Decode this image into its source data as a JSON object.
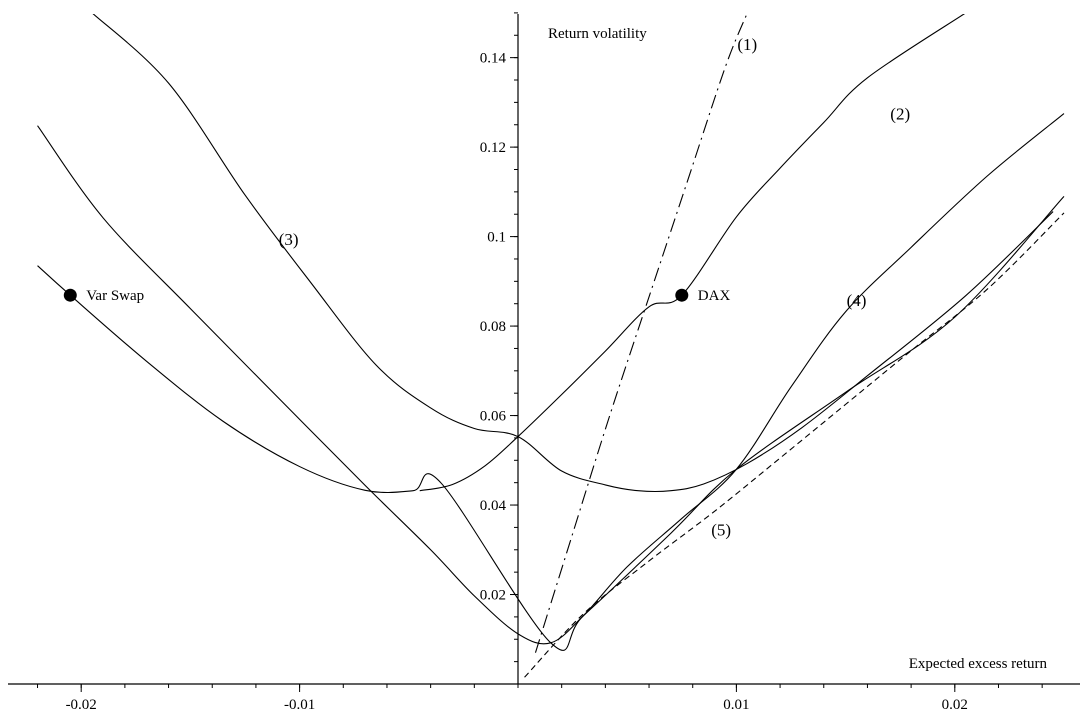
{
  "chart_data": {
    "type": "line",
    "title": "",
    "xlabel": "Expected excess return",
    "ylabel": "Return volatility",
    "xlim": [
      -0.022,
      0.025
    ],
    "ylim": [
      0,
      0.15
    ],
    "x_ticks": [
      -0.02,
      -0.01,
      0.01,
      0.02
    ],
    "x_tick_labels": [
      "-0.02",
      "-0.01",
      "0.01",
      "0.02"
    ],
    "y_ticks": [
      0.02,
      0.04,
      0.06,
      0.08,
      0.1,
      0.12,
      0.14
    ],
    "y_tick_labels": [
      "0.02",
      "0.04",
      "0.06",
      "0.08",
      "0.1",
      "0.12",
      "0.14"
    ],
    "grid": false,
    "legend": "none",
    "series": [
      {
        "label": "(1)",
        "style": "dash-dot",
        "label_at": [
          0.0105,
          0.143
        ],
        "points": [
          [
            0.0008,
            0.007
          ],
          [
            0.0024,
            0.032
          ],
          [
            0.0042,
            0.06
          ],
          [
            0.0061,
            0.088
          ],
          [
            0.0078,
            0.113
          ],
          [
            0.0095,
            0.138
          ],
          [
            0.0105,
            0.15
          ]
        ]
      },
      {
        "label": "(2)",
        "style": "solid",
        "label_at": [
          0.0175,
          0.1275
        ],
        "points": [
          [
            -0.0045,
            0.0432
          ],
          [
            -0.003,
            0.0446
          ],
          [
            -0.0015,
            0.0488
          ],
          [
            0,
            0.0553
          ],
          [
            0.002,
            0.0647
          ],
          [
            0.004,
            0.0744
          ],
          [
            0.006,
            0.0843
          ],
          [
            0.0075,
            0.0869
          ],
          [
            0.01,
            0.1044
          ],
          [
            0.012,
            0.1153
          ],
          [
            0.014,
            0.1255
          ],
          [
            0.016,
            0.1355
          ],
          [
            0.0205,
            0.15
          ]
        ]
      },
      {
        "label": "(3)",
        "style": "solid",
        "label_at": [
          -0.0105,
          0.0995
        ],
        "points": [
          [
            -0.0195,
            0.15
          ],
          [
            -0.016,
            0.1343
          ],
          [
            -0.0125,
            0.1093
          ],
          [
            -0.0095,
            0.0898
          ],
          [
            -0.0065,
            0.0713
          ],
          [
            -0.004,
            0.0617
          ],
          [
            -0.002,
            0.0571
          ],
          [
            0,
            0.0553
          ],
          [
            0.002,
            0.0476
          ],
          [
            0.004,
            0.0445
          ],
          [
            0.0055,
            0.0432
          ],
          [
            0.007,
            0.0432
          ],
          [
            0.0085,
            0.0447
          ],
          [
            0.0105,
            0.0493
          ],
          [
            0.013,
            0.0573
          ],
          [
            0.016,
            0.0689
          ],
          [
            0.0205,
            0.0868
          ],
          [
            0.0245,
            0.1056
          ]
        ]
      },
      {
        "label": "(4)",
        "style": "solid",
        "label_at": [
          0.0155,
          0.0858
        ],
        "points": [
          [
            -0.022,
            0.1248
          ],
          [
            -0.019,
            0.1042
          ],
          [
            -0.015,
            0.0839
          ],
          [
            -0.011,
            0.0641
          ],
          [
            -0.007,
            0.0444
          ],
          [
            -0.004,
            0.03
          ],
          [
            -0.002,
            0.0197
          ],
          [
            0,
            0.0112
          ],
          [
            0.0015,
            0.0092
          ],
          [
            0.003,
            0.0153
          ],
          [
            0.005,
            0.0262
          ],
          [
            0.0075,
            0.037
          ],
          [
            0.01,
            0.048
          ],
          [
            0.0125,
            0.0664
          ],
          [
            0.015,
            0.0832
          ],
          [
            0.018,
            0.0976
          ],
          [
            0.0215,
            0.1136
          ],
          [
            0.025,
            0.1275
          ]
        ]
      },
      {
        "label": "",
        "style": "solid",
        "points": [
          [
            -0.022,
            0.0935
          ],
          [
            -0.0205,
            0.0869
          ],
          [
            -0.017,
            0.0721
          ],
          [
            -0.0135,
            0.0587
          ],
          [
            -0.01,
            0.0486
          ],
          [
            -0.007,
            0.0433
          ],
          [
            -0.0048,
            0.0432
          ],
          [
            -0.0035,
            0.0448
          ],
          [
            0.0015,
            0.0092
          ],
          [
            0.003,
            0.0153
          ],
          [
            0.007,
            0.0337
          ],
          [
            0.01,
            0.048
          ],
          [
            0.015,
            0.0652
          ],
          [
            0.02,
            0.082
          ],
          [
            0.025,
            0.109
          ]
        ]
      },
      {
        "label": "(5)",
        "style": "dashed",
        "label_at": [
          0.0093,
          0.0345
        ],
        "points": [
          [
            0.0003,
            0.0015
          ],
          [
            0.003,
            0.0157
          ],
          [
            0.006,
            0.0275
          ],
          [
            0.009,
            0.0386
          ],
          [
            0.012,
            0.0505
          ],
          [
            0.015,
            0.0625
          ],
          [
            0.018,
            0.0745
          ],
          [
            0.0215,
            0.0883
          ],
          [
            0.025,
            0.1053
          ]
        ]
      }
    ],
    "annotations": [
      {
        "label": "Var Swap",
        "x": -0.0205,
        "y": 0.0869
      },
      {
        "label": "DAX",
        "x": 0.0075,
        "y": 0.0869
      }
    ]
  }
}
